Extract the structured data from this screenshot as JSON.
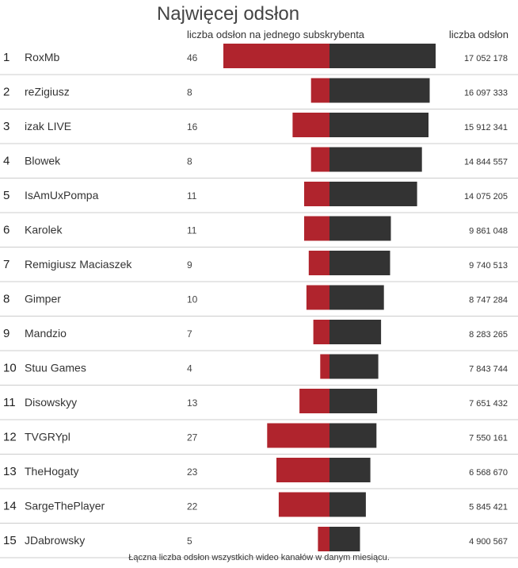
{
  "header": {
    "title": "Najwięcej odsłon",
    "left_label": "liczba odsłon na jednego subskrybenta",
    "right_label": "liczba odsłon"
  },
  "footer": "Łączna liczba odsłon wszystkich wideo kanałów w danym miesiącu.",
  "colors": {
    "ratio_bar": "#b0242d",
    "views_bar": "#333333",
    "separator": "#cccccc"
  },
  "chart_data": {
    "type": "bar",
    "title": "Najwięcej odsłon",
    "categories": [
      "RoxMb",
      "reZigiusz",
      "izak LIVE",
      "Blowek",
      "IsAmUxPompa",
      "Karolek",
      "Remigiusz Maciaszek",
      "Gimper",
      "Mandzio",
      "Stuu Games",
      "Disowskyy",
      "TVGRYpl",
      "TheHogaty",
      "SargeThePlayer",
      "JDabrowsky"
    ],
    "ranks": [
      "1",
      "2",
      "3",
      "4",
      "5",
      "6",
      "7",
      "8",
      "9",
      "10",
      "11",
      "12",
      "13",
      "14",
      "15"
    ],
    "series": [
      {
        "name": "liczba odsłon na jednego subskrybenta",
        "values": [
          46,
          8,
          16,
          8,
          11,
          11,
          9,
          10,
          7,
          4,
          13,
          27,
          23,
          22,
          5
        ],
        "labels": [
          "46",
          "8",
          "16",
          "8",
          "11",
          "11",
          "9",
          "10",
          "7",
          "4",
          "13",
          "27",
          "23",
          "22",
          "5"
        ]
      },
      {
        "name": "liczba odsłon",
        "values": [
          17052178,
          16097333,
          15912341,
          14844557,
          14075205,
          9861048,
          9740513,
          8747284,
          8283265,
          7843744,
          7651432,
          7550161,
          6568670,
          5845421,
          4900567
        ],
        "labels": [
          "17 052 178",
          "16 097 333",
          "15 912 341",
          "14 844 557",
          "14 075 205",
          "9 861 048",
          "9 740 513",
          "8 747 284",
          "8 283 265",
          "7 843 744",
          "7 651 432",
          "7 550 161",
          "6 568 670",
          "5 845 421",
          "4 900 567"
        ]
      }
    ]
  }
}
